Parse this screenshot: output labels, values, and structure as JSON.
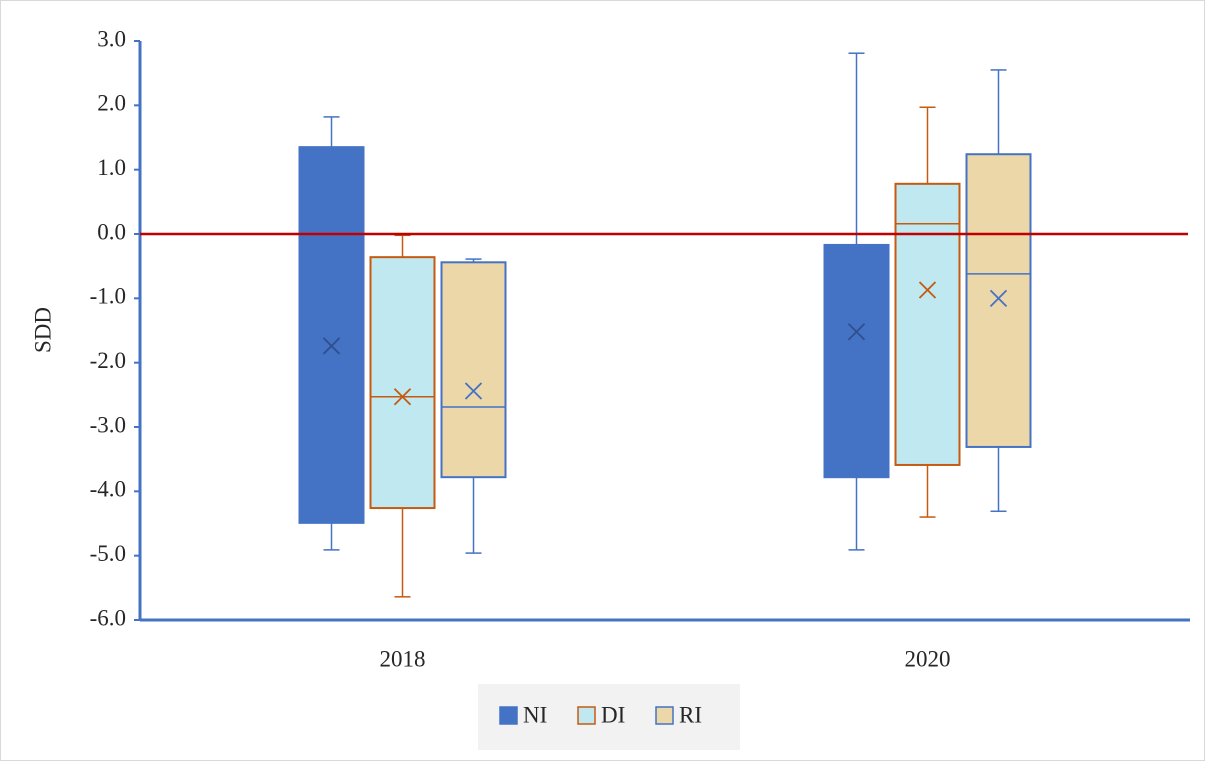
{
  "chart_data": {
    "type": "box",
    "y_label": "SDD",
    "categories": [
      "2018",
      "2020"
    ],
    "ylim": [
      -6,
      3
    ],
    "yticks": [
      {
        "value": 3,
        "label": "3.0"
      },
      {
        "value": 2,
        "label": "2.0"
      },
      {
        "value": 1,
        "label": "1.0"
      },
      {
        "value": 0,
        "label": "0.0"
      },
      {
        "value": -1,
        "label": "-1.0"
      },
      {
        "value": -2,
        "label": "-2.0"
      },
      {
        "value": -3,
        "label": "-3.0"
      },
      {
        "value": -4,
        "label": "-4.0"
      },
      {
        "value": -5,
        "label": "-5.0"
      },
      {
        "value": -6,
        "label": "-6.0"
      }
    ],
    "reference_line": {
      "value": 0,
      "color": "#c00000"
    },
    "axis_color": "#4472c4",
    "series": [
      {
        "name": "NI",
        "color": "#4472c4",
        "fill": "#4472c4",
        "min": [
          -4.91,
          -4.91
        ],
        "q1": [
          -4.49,
          -3.78
        ],
        "median": [
          -1.41,
          -1.46
        ],
        "q3": [
          1.35,
          -0.17
        ],
        "max": [
          1.82,
          2.81
        ],
        "mean": [
          -1.74,
          -1.52
        ]
      },
      {
        "name": "DI",
        "color": "#c55a11",
        "fill": "#bfe8f1",
        "min": [
          -5.64,
          -4.4
        ],
        "q1": [
          -4.26,
          -3.59
        ],
        "median": [
          -2.53,
          0.16
        ],
        "q3": [
          -0.36,
          0.78
        ],
        "max": [
          -0.02,
          1.97
        ],
        "mean": [
          -2.53,
          -0.87
        ]
      },
      {
        "name": "RI",
        "color": "#4472c4",
        "fill": "#ecd7a8",
        "min": [
          -4.96,
          -4.31
        ],
        "q1": [
          -3.78,
          -3.31
        ],
        "median": [
          -2.69,
          -0.62
        ],
        "q3": [
          -0.44,
          1.24
        ],
        "max": [
          -0.39,
          2.55
        ],
        "mean": [
          -2.44,
          -1.0
        ]
      }
    ],
    "legend": "bottom"
  }
}
